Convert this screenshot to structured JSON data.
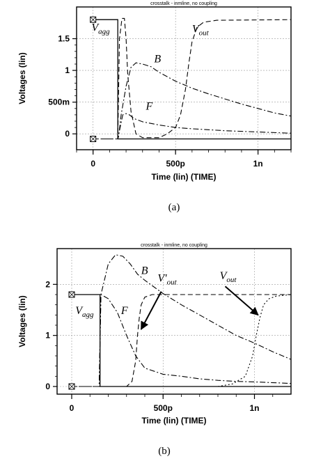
{
  "chart_data": [
    {
      "type": "line",
      "caption": "(a)",
      "title": "crosstalk - inmline, no coupling",
      "xlabel": "Time (lin) (TIME)",
      "ylabel": "Voltages (lin)",
      "xlim": [
        -0.1,
        1.2
      ],
      "ylim": [
        -0.25,
        2.0
      ],
      "x_ticks": [
        0,
        0.5,
        1.0
      ],
      "x_tick_labels": [
        "0",
        "500p",
        "1n"
      ],
      "y_ticks": [
        0,
        0.5,
        1.0,
        1.5
      ],
      "y_tick_labels": [
        "0",
        "500m",
        "1",
        "1.5"
      ],
      "grid": true,
      "annotations": [
        {
          "base": "V",
          "sub": "agg",
          "x": -0.01,
          "y": 1.62
        },
        {
          "base": "V",
          "sub": "out",
          "x": 0.6,
          "y": 1.6
        },
        {
          "base": "B",
          "x": 0.37,
          "y": 1.13
        },
        {
          "base": "F",
          "x": 0.32,
          "y": 0.38
        }
      ],
      "series": [
        {
          "name": "Vagg",
          "style": "solid",
          "points": [
            [
              0,
              1.8
            ],
            [
              0.15,
              1.8
            ],
            [
              0.15,
              -0.08
            ],
            [
              1.2,
              -0.08
            ]
          ]
        },
        {
          "name": "B",
          "style": "dashdot",
          "points": [
            [
              0,
              -0.08
            ],
            [
              0.15,
              -0.08
            ],
            [
              0.155,
              -0.04
            ],
            [
              0.17,
              0.3
            ],
            [
              0.2,
              0.75
            ],
            [
              0.23,
              1.05
            ],
            [
              0.26,
              1.12
            ],
            [
              0.3,
              1.1
            ],
            [
              0.35,
              1.06
            ],
            [
              0.4,
              0.97
            ],
            [
              0.5,
              0.83
            ],
            [
              0.6,
              0.72
            ],
            [
              0.7,
              0.63
            ],
            [
              0.8,
              0.55
            ],
            [
              0.9,
              0.47
            ],
            [
              1.0,
              0.4
            ],
            [
              1.1,
              0.33
            ],
            [
              1.2,
              0.28
            ]
          ]
        },
        {
          "name": "F",
          "style": "dashdot",
          "points": [
            [
              0,
              -0.08
            ],
            [
              0.15,
              -0.08
            ],
            [
              0.16,
              0.05
            ],
            [
              0.18,
              0.3
            ],
            [
              0.2,
              0.32
            ],
            [
              0.22,
              0.3
            ],
            [
              0.25,
              0.24
            ],
            [
              0.3,
              0.19
            ],
            [
              0.4,
              0.14
            ],
            [
              0.5,
              0.1
            ],
            [
              0.6,
              0.08
            ],
            [
              0.8,
              0.05
            ],
            [
              1.0,
              0.03
            ],
            [
              1.2,
              0.01
            ]
          ]
        },
        {
          "name": "Vout",
          "style": "dashed",
          "points": [
            [
              0,
              -0.08
            ],
            [
              0.15,
              -0.08
            ],
            [
              0.16,
              1.5
            ],
            [
              0.175,
              1.82
            ],
            [
              0.19,
              1.82
            ],
            [
              0.2,
              1.5
            ],
            [
              0.21,
              0.95
            ],
            [
              0.23,
              0.35
            ],
            [
              0.26,
              0.0
            ],
            [
              0.3,
              -0.06
            ],
            [
              0.4,
              -0.06
            ],
            [
              0.45,
              0.0
            ],
            [
              0.5,
              0.1
            ],
            [
              0.53,
              0.3
            ],
            [
              0.56,
              0.7
            ],
            [
              0.58,
              1.1
            ],
            [
              0.6,
              1.45
            ],
            [
              0.63,
              1.68
            ],
            [
              0.67,
              1.76
            ],
            [
              0.75,
              1.79
            ],
            [
              1.2,
              1.8
            ]
          ]
        }
      ]
    },
    {
      "type": "line",
      "caption": "(b)",
      "title": "crosstalk - inmline, no coupling",
      "xlabel": "Time (lin) (TIME)",
      "ylabel": "Voltages (lin)",
      "xlim": [
        -0.08,
        1.2
      ],
      "ylim": [
        -0.15,
        2.7
      ],
      "x_ticks": [
        0,
        0.5,
        1.0
      ],
      "x_tick_labels": [
        "0",
        "500p",
        "1n"
      ],
      "y_ticks": [
        0,
        1,
        2
      ],
      "y_tick_labels": [
        "0",
        "1",
        "2"
      ],
      "grid": true,
      "annotations": [
        {
          "base": "V",
          "sub": "agg",
          "x": 0.02,
          "y": 1.42
        },
        {
          "base": "B",
          "x": 0.38,
          "y": 2.2
        },
        {
          "base": "F",
          "x": 0.27,
          "y": 1.42
        },
        {
          "base": "V'",
          "sub": "out",
          "x": 0.47,
          "y": 2.05
        },
        {
          "base": "V",
          "sub": "out",
          "x": 0.81,
          "y": 2.1
        }
      ],
      "arrows": [
        {
          "from": [
            0.49,
            1.86
          ],
          "to": [
            0.38,
            1.12
          ]
        },
        {
          "from": [
            0.84,
            1.96
          ],
          "to": [
            1.02,
            1.4
          ]
        }
      ],
      "series": [
        {
          "name": "Vagg",
          "style": "solid",
          "points": [
            [
              0,
              1.8
            ],
            [
              0.155,
              1.8
            ],
            [
              0.155,
              0.0
            ],
            [
              1.2,
              0.0
            ]
          ]
        },
        {
          "name": "B",
          "style": "dashdot",
          "points": [
            [
              0,
              0
            ],
            [
              0.15,
              0
            ],
            [
              0.16,
              1.8
            ],
            [
              0.18,
              2.1
            ],
            [
              0.2,
              2.4
            ],
            [
              0.24,
              2.58
            ],
            [
              0.28,
              2.55
            ],
            [
              0.32,
              2.4
            ],
            [
              0.36,
              2.2
            ],
            [
              0.4,
              2.08
            ],
            [
              0.5,
              1.82
            ],
            [
              0.6,
              1.6
            ],
            [
              0.7,
              1.4
            ],
            [
              0.8,
              1.2
            ],
            [
              0.9,
              1.0
            ],
            [
              1.0,
              0.85
            ],
            [
              1.1,
              0.68
            ],
            [
              1.2,
              0.53
            ]
          ]
        },
        {
          "name": "F",
          "style": "dashdot",
          "points": [
            [
              0,
              0
            ],
            [
              0.15,
              0
            ],
            [
              0.16,
              1.8
            ],
            [
              0.2,
              1.72
            ],
            [
              0.25,
              1.45
            ],
            [
              0.3,
              1.0
            ],
            [
              0.35,
              0.6
            ],
            [
              0.4,
              0.36
            ],
            [
              0.5,
              0.24
            ],
            [
              0.6,
              0.2
            ],
            [
              0.7,
              0.15
            ],
            [
              0.8,
              0.12
            ],
            [
              0.9,
              0.1
            ],
            [
              1.0,
              0.09
            ],
            [
              1.2,
              0.06
            ]
          ]
        },
        {
          "name": "V'out",
          "style": "dashed",
          "points": [
            [
              0,
              0
            ],
            [
              0.3,
              0
            ],
            [
              0.33,
              0.1
            ],
            [
              0.35,
              0.5
            ],
            [
              0.36,
              1.0
            ],
            [
              0.37,
              1.35
            ],
            [
              0.38,
              1.6
            ],
            [
              0.4,
              1.75
            ],
            [
              0.44,
              1.8
            ],
            [
              1.2,
              1.8
            ]
          ]
        },
        {
          "name": "Vout",
          "style": "dotted",
          "points": [
            [
              0,
              0
            ],
            [
              0.8,
              0
            ],
            [
              0.88,
              0.05
            ],
            [
              0.95,
              0.2
            ],
            [
              0.99,
              0.6
            ],
            [
              1.01,
              1.0
            ],
            [
              1.03,
              1.35
            ],
            [
              1.05,
              1.6
            ],
            [
              1.08,
              1.72
            ],
            [
              1.12,
              1.77
            ],
            [
              1.2,
              1.8
            ]
          ]
        }
      ]
    }
  ]
}
